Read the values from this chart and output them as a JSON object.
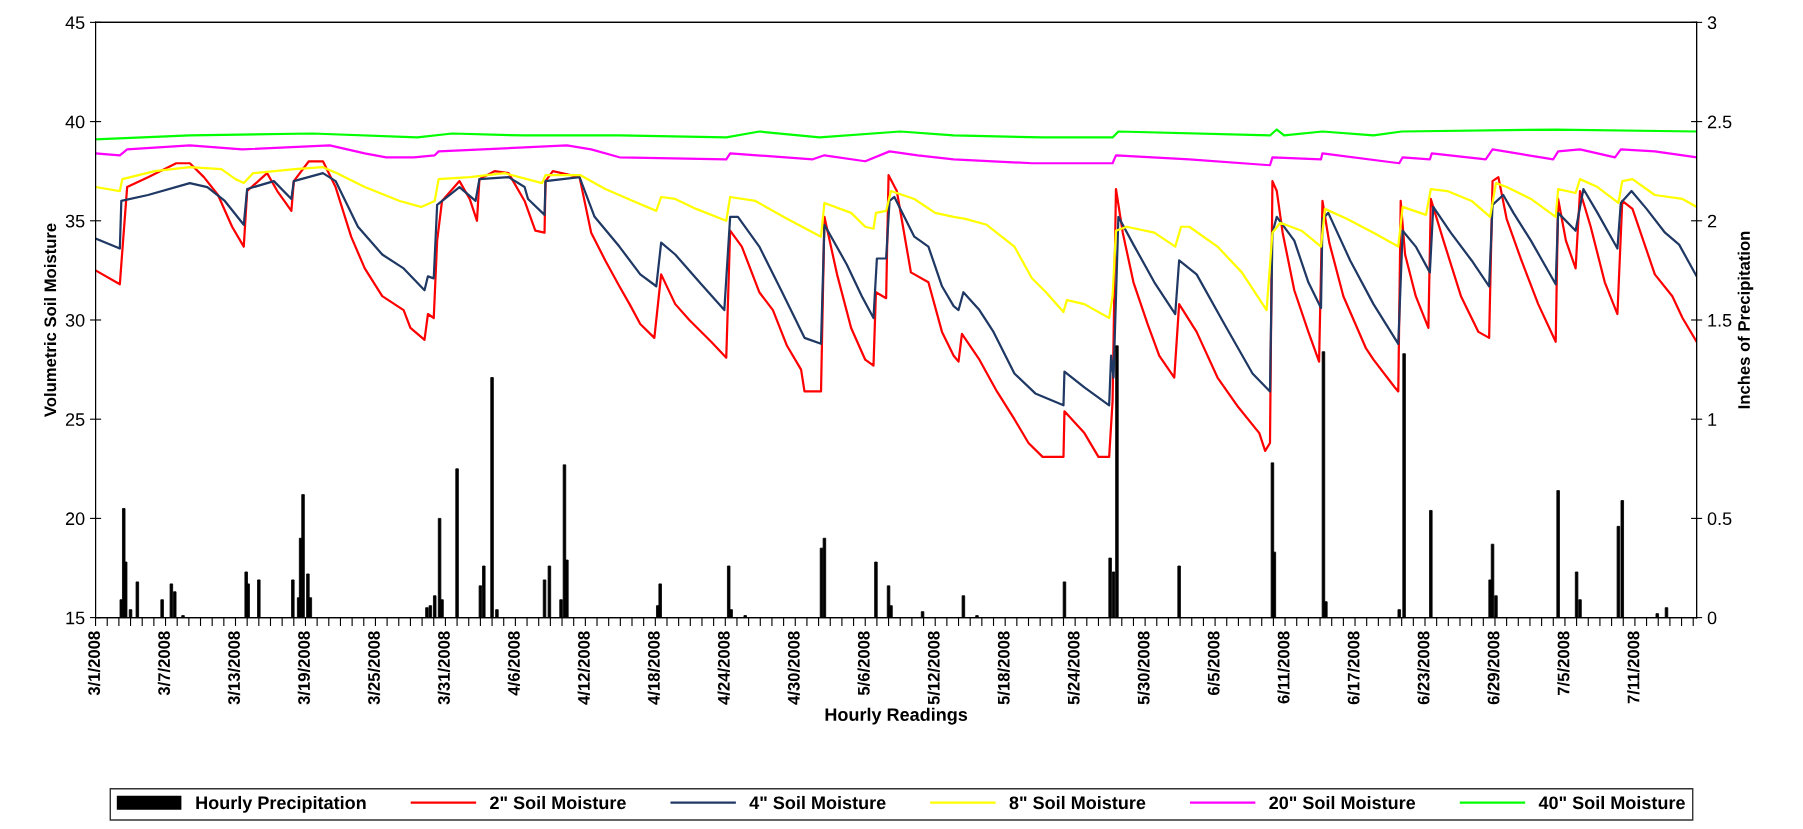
{
  "chart_data": {
    "type": "line",
    "xlabel": "Hourly Readings",
    "ylabel": "Volumetric Soil Moisture",
    "y2label": "Inches of Precipitation",
    "xlim": [
      "2008-03-01T00:00",
      "2008-07-16T07:00"
    ],
    "ylim": [
      15,
      45
    ],
    "yticks": [
      15,
      20,
      25,
      30,
      35,
      40,
      45
    ],
    "y2lim": [
      0,
      3
    ],
    "y2ticks": [
      0,
      0.5,
      1,
      1.5,
      2,
      2.5,
      3
    ],
    "xticks": [
      {
        "value": "2008-03-01",
        "label": "3/1/2008"
      },
      {
        "value": "2008-03-02",
        "label": null
      },
      {
        "value": "2008-03-03",
        "label": null
      },
      {
        "value": "2008-03-04",
        "label": null
      },
      {
        "value": "2008-03-05",
        "label": null
      },
      {
        "value": "2008-03-06",
        "label": null
      },
      {
        "value": "2008-03-07",
        "label": "3/7/2008"
      },
      {
        "value": "2008-03-08",
        "label": null
      },
      {
        "value": "2008-03-09",
        "label": null
      },
      {
        "value": "2008-03-10",
        "label": null
      },
      {
        "value": "2008-03-11",
        "label": null
      },
      {
        "value": "2008-03-12",
        "label": null
      },
      {
        "value": "2008-03-13",
        "label": "3/13/2008"
      },
      {
        "value": "2008-03-14",
        "label": null
      },
      {
        "value": "2008-03-15",
        "label": null
      },
      {
        "value": "2008-03-16",
        "label": null
      },
      {
        "value": "2008-03-17",
        "label": null
      },
      {
        "value": "2008-03-18",
        "label": null
      },
      {
        "value": "2008-03-19",
        "label": "3/19/2008"
      },
      {
        "value": "2008-03-20",
        "label": null
      },
      {
        "value": "2008-03-21",
        "label": null
      },
      {
        "value": "2008-03-22",
        "label": null
      },
      {
        "value": "2008-03-23",
        "label": null
      },
      {
        "value": "2008-03-24",
        "label": null
      },
      {
        "value": "2008-03-25",
        "label": "3/25/2008"
      },
      {
        "value": "2008-03-26",
        "label": null
      },
      {
        "value": "2008-03-27",
        "label": null
      },
      {
        "value": "2008-03-28",
        "label": null
      },
      {
        "value": "2008-03-29",
        "label": null
      },
      {
        "value": "2008-03-30",
        "label": null
      },
      {
        "value": "2008-03-31",
        "label": "3/31/2008"
      },
      {
        "value": "2008-04-01",
        "label": null
      },
      {
        "value": "2008-04-02",
        "label": null
      },
      {
        "value": "2008-04-03",
        "label": null
      },
      {
        "value": "2008-04-04",
        "label": null
      },
      {
        "value": "2008-04-05",
        "label": null
      },
      {
        "value": "2008-04-06",
        "label": "4/6/2008"
      },
      {
        "value": "2008-04-07",
        "label": null
      },
      {
        "value": "2008-04-08",
        "label": null
      },
      {
        "value": "2008-04-09",
        "label": null
      },
      {
        "value": "2008-04-10",
        "label": null
      },
      {
        "value": "2008-04-11",
        "label": null
      },
      {
        "value": "2008-04-12",
        "label": "4/12/2008"
      },
      {
        "value": "2008-04-13",
        "label": null
      },
      {
        "value": "2008-04-14",
        "label": null
      },
      {
        "value": "2008-04-15",
        "label": null
      },
      {
        "value": "2008-04-16",
        "label": null
      },
      {
        "value": "2008-04-17",
        "label": null
      },
      {
        "value": "2008-04-18",
        "label": "4/18/2008"
      },
      {
        "value": "2008-04-19",
        "label": null
      },
      {
        "value": "2008-04-20",
        "label": null
      },
      {
        "value": "2008-04-21",
        "label": null
      },
      {
        "value": "2008-04-22",
        "label": null
      },
      {
        "value": "2008-04-23",
        "label": null
      },
      {
        "value": "2008-04-24",
        "label": "4/24/2008"
      },
      {
        "value": "2008-04-25",
        "label": null
      },
      {
        "value": "2008-04-26",
        "label": null
      },
      {
        "value": "2008-04-27",
        "label": null
      },
      {
        "value": "2008-04-28",
        "label": null
      },
      {
        "value": "2008-04-29",
        "label": null
      },
      {
        "value": "2008-04-30",
        "label": "4/30/2008"
      },
      {
        "value": "2008-05-01",
        "label": null
      },
      {
        "value": "2008-05-02",
        "label": null
      },
      {
        "value": "2008-05-03",
        "label": null
      },
      {
        "value": "2008-05-04",
        "label": null
      },
      {
        "value": "2008-05-05",
        "label": null
      },
      {
        "value": "2008-05-06",
        "label": "5/6/2008"
      },
      {
        "value": "2008-05-07",
        "label": null
      },
      {
        "value": "2008-05-08",
        "label": null
      },
      {
        "value": "2008-05-09",
        "label": null
      },
      {
        "value": "2008-05-10",
        "label": null
      },
      {
        "value": "2008-05-11",
        "label": null
      },
      {
        "value": "2008-05-12",
        "label": "5/12/2008"
      },
      {
        "value": "2008-05-13",
        "label": null
      },
      {
        "value": "2008-05-14",
        "label": null
      },
      {
        "value": "2008-05-15",
        "label": null
      },
      {
        "value": "2008-05-16",
        "label": null
      },
      {
        "value": "2008-05-17",
        "label": null
      },
      {
        "value": "2008-05-18",
        "label": "5/18/2008"
      },
      {
        "value": "2008-05-19",
        "label": null
      },
      {
        "value": "2008-05-20",
        "label": null
      },
      {
        "value": "2008-05-21",
        "label": null
      },
      {
        "value": "2008-05-22",
        "label": null
      },
      {
        "value": "2008-05-23",
        "label": null
      },
      {
        "value": "2008-05-24",
        "label": "5/24/2008"
      },
      {
        "value": "2008-05-25",
        "label": null
      },
      {
        "value": "2008-05-26",
        "label": null
      },
      {
        "value": "2008-05-27",
        "label": null
      },
      {
        "value": "2008-05-28",
        "label": null
      },
      {
        "value": "2008-05-29",
        "label": null
      },
      {
        "value": "2008-05-30",
        "label": "5/30/2008"
      },
      {
        "value": "2008-05-31",
        "label": null
      },
      {
        "value": "2008-06-01",
        "label": null
      },
      {
        "value": "2008-06-02",
        "label": null
      },
      {
        "value": "2008-06-03",
        "label": null
      },
      {
        "value": "2008-06-04",
        "label": null
      },
      {
        "value": "2008-06-05",
        "label": "6/5/2008"
      },
      {
        "value": "2008-06-06",
        "label": null
      },
      {
        "value": "2008-06-07",
        "label": null
      },
      {
        "value": "2008-06-08",
        "label": null
      },
      {
        "value": "2008-06-09",
        "label": null
      },
      {
        "value": "2008-06-10",
        "label": null
      },
      {
        "value": "2008-06-11",
        "label": "6/11/2008"
      },
      {
        "value": "2008-06-12",
        "label": null
      },
      {
        "value": "2008-06-13",
        "label": null
      },
      {
        "value": "2008-06-14",
        "label": null
      },
      {
        "value": "2008-06-15",
        "label": null
      },
      {
        "value": "2008-06-16",
        "label": null
      },
      {
        "value": "2008-06-17",
        "label": "6/17/2008"
      },
      {
        "value": "2008-06-18",
        "label": null
      },
      {
        "value": "2008-06-19",
        "label": null
      },
      {
        "value": "2008-06-20",
        "label": null
      },
      {
        "value": "2008-06-21",
        "label": null
      },
      {
        "value": "2008-06-22",
        "label": null
      },
      {
        "value": "2008-06-23",
        "label": "6/23/2008"
      },
      {
        "value": "2008-06-24",
        "label": null
      },
      {
        "value": "2008-06-25",
        "label": null
      },
      {
        "value": "2008-06-26",
        "label": null
      },
      {
        "value": "2008-06-27",
        "label": null
      },
      {
        "value": "2008-06-28",
        "label": null
      },
      {
        "value": "2008-06-29",
        "label": "6/29/2008"
      },
      {
        "value": "2008-06-30",
        "label": null
      },
      {
        "value": "2008-07-01",
        "label": null
      },
      {
        "value": "2008-07-02",
        "label": null
      },
      {
        "value": "2008-07-03",
        "label": null
      },
      {
        "value": "2008-07-04",
        "label": null
      },
      {
        "value": "2008-07-05",
        "label": "7/5/2008"
      },
      {
        "value": "2008-07-06",
        "label": null
      },
      {
        "value": "2008-07-07",
        "label": null
      },
      {
        "value": "2008-07-08",
        "label": null
      },
      {
        "value": "2008-07-09",
        "label": null
      },
      {
        "value": "2008-07-10",
        "label": null
      },
      {
        "value": "2008-07-11",
        "label": "7/11/2008"
      },
      {
        "value": "2008-07-12",
        "label": null
      },
      {
        "value": "2008-07-13",
        "label": null
      },
      {
        "value": "2008-07-14",
        "label": null
      },
      {
        "value": "2008-07-15",
        "label": null
      },
      {
        "value": "2008-07-16",
        "label": null
      }
    ],
    "legend": "bottom",
    "grid": false,
    "marker": "none",
    "line_style": "solid",
    "series": [
      {
        "name": "Hourly Precipitation",
        "type": "bar",
        "axis": "y2",
        "color": "#000000",
        "x": [
          "2008-03-03T05:00",
          "2008-03-03T10:00",
          "2008-03-03T14:00",
          "2008-03-04T00:00",
          "2008-03-04T14:00",
          "2008-03-06T17:00",
          "2008-03-07T12:00",
          "2008-03-07T19:00",
          "2008-03-08T12:00",
          "2008-03-13T22:00",
          "2008-03-14T02:00",
          "2008-03-15T00:00",
          "2008-03-17T22:00",
          "2008-03-18T10:00",
          "2008-03-18T14:00",
          "2008-03-18T19:00",
          "2008-03-19T05:00",
          "2008-03-19T10:00",
          "2008-03-29T10:00",
          "2008-03-29T17:00",
          "2008-03-30T02:00",
          "2008-03-30T12:00",
          "2008-03-30T17:00",
          "2008-04-01T00:00",
          "2008-04-03T00:00",
          "2008-04-03T07:00",
          "2008-04-04T00:00",
          "2008-04-04T10:00",
          "2008-04-08T12:00",
          "2008-04-08T22:00",
          "2008-04-09T22:00",
          "2008-04-10T05:00",
          "2008-04-10T10:00",
          "2008-04-18T05:00",
          "2008-04-18T10:00",
          "2008-04-24T07:00",
          "2008-04-24T12:00",
          "2008-04-25T17:00",
          "2008-05-02T06:00",
          "2008-05-02T12:00",
          "2008-05-06T22:00",
          "2008-05-08T00:00",
          "2008-05-08T05:00",
          "2008-05-10T22:00",
          "2008-05-14T10:00",
          "2008-05-15T14:00",
          "2008-05-23T02:00",
          "2008-05-27T00:00",
          "2008-05-27T07:00",
          "2008-05-27T14:00",
          "2008-06-01T22:00",
          "2008-06-09T22:00",
          "2008-06-10T02:00",
          "2008-06-14T07:00",
          "2008-06-14T12:00",
          "2008-06-20T19:00",
          "2008-06-21T05:00",
          "2008-06-23T12:00",
          "2008-06-28T14:00",
          "2008-06-28T19:00",
          "2008-06-29T02:00",
          "2008-07-04T10:00",
          "2008-07-06T00:00",
          "2008-07-06T07:00",
          "2008-07-09T14:00",
          "2008-07-09T22:00",
          "2008-07-12T22:00",
          "2008-07-13T17:00"
        ],
        "values": [
          0.09,
          0.55,
          0.28,
          0.04,
          0.18,
          0.09,
          0.17,
          0.13,
          0.01,
          0.23,
          0.17,
          0.19,
          0.19,
          0.1,
          0.4,
          0.62,
          0.22,
          0.1,
          0.05,
          0.06,
          0.11,
          0.5,
          0.09,
          0.75,
          0.16,
          0.26,
          1.21,
          0.04,
          0.19,
          0.26,
          0.09,
          0.77,
          0.29,
          0.06,
          0.17,
          0.26,
          0.04,
          0.01,
          0.35,
          0.4,
          0.28,
          0.16,
          0.06,
          0.03,
          0.11,
          0.01,
          0.18,
          0.3,
          0.23,
          1.37,
          0.26,
          0.78,
          0.33,
          1.34,
          0.08,
          0.04,
          1.33,
          0.54,
          0.19,
          0.37,
          0.11,
          0.64,
          0.23,
          0.09,
          0.46,
          0.59,
          0.02,
          0.05
        ]
      },
      {
        "name": "2\" Soil Moisture",
        "color": "#ff0000",
        "x": [
          "2008-03-01T00:00",
          "2008-03-03T02:00",
          "2008-03-03T05:00",
          "2008-03-03T17:00",
          "2008-03-05T12:00",
          "2008-03-07T22:00",
          "2008-03-09T02:00",
          "2008-03-10T07:00",
          "2008-03-11T12:00",
          "2008-03-12T17:00",
          "2008-03-13T17:00",
          "2008-03-14T00:00",
          "2008-03-15T17:00",
          "2008-03-16T14:00",
          "2008-03-17T19:00",
          "2008-03-18T00:00",
          "2008-03-19T07:00",
          "2008-03-20T12:00",
          "2008-03-21T14:00",
          "2008-03-22T22:00",
          "2008-03-24T02:00",
          "2008-03-25T14:00",
          "2008-03-27T10:00",
          "2008-03-28T00:00",
          "2008-03-29T05:00",
          "2008-03-29T12:00",
          "2008-03-30T00:00",
          "2008-03-30T07:00",
          "2008-03-30T17:00",
          "2008-04-01T05:00",
          "2008-04-02T02:00",
          "2008-04-02T17:00",
          "2008-04-02T22:00",
          "2008-04-04T05:00",
          "2008-04-05T10:00",
          "2008-04-06T19:00",
          "2008-04-07T17:00",
          "2008-04-08T12:00",
          "2008-04-08T14:00",
          "2008-04-09T05:00",
          "2008-04-11T12:00",
          "2008-04-12T12:00",
          "2008-04-13T17:00",
          "2008-04-14T22:00",
          "2008-04-15T19:00",
          "2008-04-16T17:00",
          "2008-04-17T22:00",
          "2008-04-18T12:00",
          "2008-04-19T17:00",
          "2008-04-20T22:00",
          "2008-04-22T19:00",
          "2008-04-24T02:00",
          "2008-04-24T10:00",
          "2008-04-25T10:00",
          "2008-04-26T22:00",
          "2008-04-28T02:00",
          "2008-04-29T07:00",
          "2008-04-30T12:00",
          "2008-04-30T19:00",
          "2008-05-02T05:00",
          "2008-05-02T12:00",
          "2008-05-03T14:00",
          "2008-05-04T19:00",
          "2008-05-06T00:00",
          "2008-05-06T17:00",
          "2008-05-06T22:00",
          "2008-05-07T19:00",
          "2008-05-08T00:00",
          "2008-05-08T17:00",
          "2008-05-09T22:00",
          "2008-05-11T10:00",
          "2008-05-12T14:00",
          "2008-05-13T14:00",
          "2008-05-14T00:00",
          "2008-05-14T07:00",
          "2008-05-15T19:00",
          "2008-05-17T07:00",
          "2008-05-18T19:00",
          "2008-05-20T00:00",
          "2008-05-21T05:00",
          "2008-05-23T00:00",
          "2008-05-23T02:00",
          "2008-05-24T19:00",
          "2008-05-26T00:00",
          "2008-05-26T22:00",
          "2008-05-27T05:00",
          "2008-05-27T12:00",
          "2008-05-28T02:00",
          "2008-05-29T00:00",
          "2008-05-30T05:00",
          "2008-05-31T05:00",
          "2008-06-01T12:00",
          "2008-06-01T22:00",
          "2008-06-03T10:00",
          "2008-06-05T05:00",
          "2008-06-07T00:00",
          "2008-06-08T19:00",
          "2008-06-09T07:00",
          "2008-06-09T17:00",
          "2008-06-09T22:00",
          "2008-06-10T07:00",
          "2008-06-10T19:00",
          "2008-06-11T19:00",
          "2008-06-13T00:00",
          "2008-06-13T22:00",
          "2008-06-14T05:00",
          "2008-06-14T19:00",
          "2008-06-16T00:00",
          "2008-06-17T22:00",
          "2008-06-18T14:00",
          "2008-06-20T10:00",
          "2008-06-20T17:00",
          "2008-06-20T22:00",
          "2008-06-21T07:00",
          "2008-06-22T05:00",
          "2008-06-23T07:00",
          "2008-06-23T12:00",
          "2008-06-24T14:00",
          "2008-06-26T02:00",
          "2008-06-27T14:00",
          "2008-06-28T12:00",
          "2008-06-28T19:00",
          "2008-06-29T07:00",
          "2008-06-30T00:00",
          "2008-07-01T05:00",
          "2008-07-02T17:00",
          "2008-07-04T05:00",
          "2008-07-04T10:00",
          "2008-07-05T02:00",
          "2008-07-05T22:00",
          "2008-07-06T07:00",
          "2008-07-07T05:00",
          "2008-07-08T10:00",
          "2008-07-09T12:00",
          "2008-07-09T22:00",
          "2008-07-10T19:00",
          "2008-07-12T17:00",
          "2008-07-14T05:00",
          "2008-07-15T02:00",
          "2008-07-16T07:00"
        ],
        "values": [
          32.5,
          31.8,
          32.8,
          36.7,
          37.2,
          37.9,
          37.9,
          37.2,
          36.3,
          34.7,
          33.7,
          36.5,
          37.4,
          36.5,
          35.5,
          37.0,
          38.0,
          38.0,
          36.7,
          34.2,
          32.6,
          31.2,
          30.5,
          29.6,
          29.0,
          30.3,
          30.1,
          34.0,
          36.0,
          37.0,
          36.1,
          35.0,
          37.1,
          37.5,
          37.4,
          36.0,
          34.5,
          34.4,
          37.0,
          37.5,
          37.2,
          34.4,
          33.0,
          31.7,
          30.8,
          29.8,
          29.1,
          32.3,
          30.8,
          30.0,
          28.9,
          28.1,
          34.5,
          33.7,
          31.4,
          30.5,
          28.7,
          27.5,
          26.4,
          26.4,
          35.2,
          32.3,
          29.6,
          28.0,
          27.7,
          31.4,
          31.1,
          37.3,
          36.5,
          32.4,
          31.9,
          29.4,
          28.2,
          27.9,
          29.3,
          28.0,
          26.4,
          25.0,
          23.8,
          23.1,
          23.1,
          25.4,
          24.3,
          23.1,
          23.1,
          25.9,
          36.6,
          34.4,
          31.9,
          29.8,
          28.2,
          27.1,
          30.8,
          29.4,
          27.1,
          25.6,
          24.3,
          23.4,
          23.8,
          37.0,
          36.5,
          34.4,
          31.5,
          29.4,
          27.9,
          36.0,
          33.9,
          31.2,
          28.6,
          28.0,
          26.6,
          26.4,
          36.0,
          33.3,
          31.2,
          29.6,
          36.1,
          34.0,
          31.2,
          29.4,
          29.1,
          37.0,
          37.2,
          35.1,
          33.1,
          30.8,
          28.9,
          36.1,
          34.0,
          32.6,
          36.5,
          34.7,
          31.9,
          30.3,
          36.0,
          35.6,
          32.3,
          31.2,
          30.1,
          28.9
        ]
      },
      {
        "name": "4\" Soil Moisture",
        "color": "#1f3864",
        "x": [
          "2008-03-01T00:00",
          "2008-03-03T02:00",
          "2008-03-03T05:00",
          "2008-03-05T12:00",
          "2008-03-09T02:00",
          "2008-03-10T14:00",
          "2008-03-12T02:00",
          "2008-03-13T17:00",
          "2008-03-14T00:00",
          "2008-03-16T07:00",
          "2008-03-17T19:00",
          "2008-03-18T00:00",
          "2008-03-20T12:00",
          "2008-03-21T14:00",
          "2008-03-23T12:00",
          "2008-03-25T14:00",
          "2008-03-27T10:00",
          "2008-03-29T05:00",
          "2008-03-29T12:00",
          "2008-03-30T00:00",
          "2008-03-30T07:00",
          "2008-04-01T05:00",
          "2008-04-02T14:00",
          "2008-04-02T22:00",
          "2008-04-05T10:00",
          "2008-04-06T19:00",
          "2008-04-07T02:00",
          "2008-04-08T12:00",
          "2008-04-08T14:00",
          "2008-04-11T12:00",
          "2008-04-12T19:00",
          "2008-04-14T22:00",
          "2008-04-16T17:00",
          "2008-04-18T02:00",
          "2008-04-18T12:00",
          "2008-04-19T17:00",
          "2008-04-21T19:00",
          "2008-04-23T22:00",
          "2008-04-24T10:00",
          "2008-04-25T02:00",
          "2008-04-26T22:00",
          "2008-04-28T19:00",
          "2008-04-30T19:00",
          "2008-05-02T05:00",
          "2008-05-02T12:00",
          "2008-05-04T10:00",
          "2008-05-05T17:00",
          "2008-05-06T17:00",
          "2008-05-07T00:00",
          "2008-05-07T19:00",
          "2008-05-08T02:00",
          "2008-05-08T12:00",
          "2008-05-10T05:00",
          "2008-05-11T10:00",
          "2008-05-12T14:00",
          "2008-05-13T14:00",
          "2008-05-14T00:00",
          "2008-05-14T10:00",
          "2008-05-15T19:00",
          "2008-05-17T00:00",
          "2008-05-18T19:00",
          "2008-05-20T14:00",
          "2008-05-23T00:00",
          "2008-05-23T02:00",
          "2008-05-24T19:00",
          "2008-05-26T22:00",
          "2008-05-27T02:00",
          "2008-05-27T07:00",
          "2008-05-27T17:00",
          "2008-05-29T00:00",
          "2008-05-30T19:00",
          "2008-06-01T14:00",
          "2008-06-01T22:00",
          "2008-06-03T10:00",
          "2008-06-05T19:00",
          "2008-06-08T05:00",
          "2008-06-09T17:00",
          "2008-06-09T22:00",
          "2008-06-10T07:00",
          "2008-06-11T19:00",
          "2008-06-13T00:00",
          "2008-06-14T02:00",
          "2008-06-14T05:00",
          "2008-06-14T17:00",
          "2008-06-16T14:00",
          "2008-06-18T14:00",
          "2008-06-20T17:00",
          "2008-06-21T02:00",
          "2008-06-22T05:00",
          "2008-06-23T10:00",
          "2008-06-23T17:00",
          "2008-06-25T05:00",
          "2008-06-27T00:00",
          "2008-06-28T12:00",
          "2008-06-28T19:00",
          "2008-06-29T17:00",
          "2008-06-30T14:00",
          "2008-07-02T02:00",
          "2008-07-04T05:00",
          "2008-07-04T10:00",
          "2008-07-05T22:00",
          "2008-07-06T14:00",
          "2008-07-07T19:00",
          "2008-07-09T12:00",
          "2008-07-09T19:00",
          "2008-07-10T17:00",
          "2008-07-12T00:00",
          "2008-07-13T14:00",
          "2008-07-14T19:00",
          "2008-07-16T07:00"
        ],
        "values": [
          34.1,
          33.6,
          36.0,
          36.3,
          36.9,
          36.7,
          36.0,
          34.8,
          36.6,
          37.0,
          36.1,
          37.0,
          37.4,
          37.0,
          34.7,
          33.3,
          32.6,
          31.5,
          32.2,
          32.1,
          35.8,
          36.7,
          36.0,
          37.1,
          37.2,
          36.7,
          36.1,
          35.3,
          37.0,
          37.2,
          35.2,
          33.7,
          32.3,
          31.7,
          33.9,
          33.3,
          31.9,
          30.5,
          35.2,
          35.2,
          33.7,
          31.5,
          29.1,
          28.8,
          34.8,
          32.8,
          31.2,
          30.1,
          33.1,
          33.1,
          36.0,
          36.2,
          34.2,
          33.7,
          31.7,
          30.7,
          30.5,
          31.4,
          30.5,
          29.4,
          27.3,
          26.3,
          25.7,
          27.4,
          26.6,
          25.7,
          28.2,
          27.1,
          35.2,
          33.8,
          31.9,
          30.3,
          33.0,
          32.3,
          29.8,
          27.3,
          26.4,
          34.4,
          35.2,
          34.0,
          31.9,
          30.6,
          35.1,
          35.4,
          33.0,
          30.8,
          28.8,
          34.5,
          33.7,
          32.4,
          35.7,
          34.4,
          33.0,
          31.7,
          35.8,
          36.3,
          35.4,
          34.0,
          31.8,
          35.4,
          34.5,
          36.6,
          35.4,
          33.6,
          35.9,
          36.5,
          35.6,
          34.4,
          33.8,
          32.2
        ]
      },
      {
        "name": "8\" Soil Moisture",
        "color": "#ffff00",
        "x": [
          "2008-03-01T00:00",
          "2008-03-03T02:00",
          "2008-03-03T07:00",
          "2008-03-06T02:00",
          "2008-03-09T02:00",
          "2008-03-11T19:00",
          "2008-03-13T00:00",
          "2008-03-13T17:00",
          "2008-03-14T12:00",
          "2008-03-18T02:00",
          "2008-03-20T12:00",
          "2008-03-21T17:00",
          "2008-03-24T02:00",
          "2008-03-27T02:00",
          "2008-03-28T22:00",
          "2008-03-30T02:00",
          "2008-03-30T10:00",
          "2008-04-02T02:00",
          "2008-04-05T02:00",
          "2008-04-08T07:00",
          "2008-04-08T14:00",
          "2008-04-11T14:00",
          "2008-04-13T17:00",
          "2008-04-16T02:00",
          "2008-04-18T02:00",
          "2008-04-18T12:00",
          "2008-04-19T17:00",
          "2008-04-21T12:00",
          "2008-04-24T02:00",
          "2008-04-24T10:00",
          "2008-04-26T14:00",
          "2008-04-29T07:00",
          "2008-05-02T05:00",
          "2008-05-02T12:00",
          "2008-05-04T19:00",
          "2008-05-06T00:00",
          "2008-05-06T17:00",
          "2008-05-06T22:00",
          "2008-05-07T19:00",
          "2008-05-08T05:00",
          "2008-05-10T05:00",
          "2008-05-12T00:00",
          "2008-05-13T14:00",
          "2008-05-14T14:00",
          "2008-05-16T10:00",
          "2008-05-18T19:00",
          "2008-05-20T07:00",
          "2008-05-21T12:00",
          "2008-05-23T00:00",
          "2008-05-23T07:00",
          "2008-05-24T19:00",
          "2008-05-26T22:00",
          "2008-05-27T05:00",
          "2008-05-27T12:00",
          "2008-05-28T10:00",
          "2008-05-30T19:00",
          "2008-06-01T14:00",
          "2008-06-02T02:00",
          "2008-06-02T19:00",
          "2008-06-05T05:00",
          "2008-06-07T07:00",
          "2008-06-09T10:00",
          "2008-06-09T22:00",
          "2008-06-10T14:00",
          "2008-06-12T10:00",
          "2008-06-14T02:00",
          "2008-06-14T10:00",
          "2008-06-16T07:00",
          "2008-06-18T14:00",
          "2008-06-20T17:00",
          "2008-06-21T02:00",
          "2008-06-23T02:00",
          "2008-06-23T12:00",
          "2008-06-24T22:00",
          "2008-06-27T00:00",
          "2008-06-28T14:00",
          "2008-06-29T02:00",
          "2008-06-30T00:00",
          "2008-07-02T02:00",
          "2008-07-04T05:00",
          "2008-07-04T10:00",
          "2008-07-05T22:00",
          "2008-07-06T07:00",
          "2008-07-07T19:00",
          "2008-07-09T14:00",
          "2008-07-09T22:00",
          "2008-07-10T19:00",
          "2008-07-12T17:00",
          "2008-07-15T02:00",
          "2008-07-16T07:00"
        ],
        "values": [
          36.7,
          36.5,
          37.1,
          37.5,
          37.7,
          37.6,
          37.1,
          36.9,
          37.4,
          37.6,
          37.7,
          37.4,
          36.7,
          36.0,
          35.7,
          36.0,
          37.1,
          37.2,
          37.4,
          36.9,
          37.3,
          37.3,
          36.6,
          36.0,
          35.5,
          36.2,
          36.1,
          35.6,
          35.0,
          36.2,
          36.0,
          35.1,
          34.2,
          35.9,
          35.4,
          34.7,
          34.6,
          35.4,
          35.5,
          36.5,
          36.1,
          35.4,
          35.2,
          35.1,
          34.8,
          33.7,
          32.1,
          31.4,
          30.4,
          31.0,
          30.8,
          30.1,
          31.2,
          34.5,
          34.7,
          34.4,
          33.7,
          34.7,
          34.7,
          33.7,
          32.4,
          30.5,
          34.4,
          34.9,
          34.5,
          33.7,
          35.6,
          35.1,
          34.4,
          33.7,
          35.7,
          35.3,
          36.6,
          36.5,
          36.0,
          35.2,
          36.9,
          36.7,
          36.1,
          35.2,
          36.6,
          36.4,
          37.1,
          36.7,
          35.9,
          37.0,
          37.1,
          36.3,
          36.1,
          35.7
        ]
      },
      {
        "name": "20\" Soil Moisture",
        "color": "#ff00ff",
        "x": [
          "2008-03-01T00:00",
          "2008-03-03T02:00",
          "2008-03-03T17:00",
          "2008-03-09T02:00",
          "2008-03-13T14:00",
          "2008-03-21T02:00",
          "2008-03-24T02:00",
          "2008-03-25T22:00",
          "2008-03-28T07:00",
          "2008-03-30T02:00",
          "2008-03-30T10:00",
          "2008-04-06T19:00",
          "2008-04-10T10:00",
          "2008-04-12T12:00",
          "2008-04-14T22:00",
          "2008-04-24T02:00",
          "2008-04-24T10:00",
          "2008-05-01T12:00",
          "2008-05-02T12:00",
          "2008-05-06T00:00",
          "2008-05-08T02:00",
          "2008-05-10T12:00",
          "2008-05-13T14:00",
          "2008-05-20T07:00",
          "2008-05-27T05:00",
          "2008-05-27T12:00",
          "2008-06-02T19:00",
          "2008-06-09T17:00",
          "2008-06-09T22:00",
          "2008-06-14T02:00",
          "2008-06-14T05:00",
          "2008-06-20T19:00",
          "2008-06-21T02:00",
          "2008-06-23T10:00",
          "2008-06-23T14:00",
          "2008-06-28T05:00",
          "2008-06-28T19:00",
          "2008-07-04T00:00",
          "2008-07-04T10:00",
          "2008-07-06T07:00",
          "2008-07-09T07:00",
          "2008-07-09T19:00",
          "2008-07-12T17:00",
          "2008-07-16T07:00"
        ],
        "values": [
          38.4,
          38.3,
          38.6,
          38.8,
          38.6,
          38.8,
          38.4,
          38.2,
          38.2,
          38.3,
          38.5,
          38.7,
          38.8,
          38.6,
          38.2,
          38.1,
          38.4,
          38.1,
          38.3,
          38.0,
          38.5,
          38.3,
          38.1,
          37.9,
          37.9,
          38.3,
          38.1,
          37.8,
          38.2,
          38.1,
          38.4,
          37.9,
          38.2,
          38.1,
          38.4,
          38.1,
          38.6,
          38.1,
          38.5,
          38.6,
          38.2,
          38.6,
          38.5,
          38.2
        ]
      },
      {
        "name": "40\" Soil Moisture",
        "color": "#00ff00",
        "x": [
          "2008-03-01T00:00",
          "2008-03-09T02:00",
          "2008-03-19T14:00",
          "2008-03-28T14:00",
          "2008-03-31T14:00",
          "2008-04-06T19:00",
          "2008-04-14T22:00",
          "2008-04-24T02:00",
          "2008-04-26T22:00",
          "2008-05-02T02:00",
          "2008-05-09T00:00",
          "2008-05-13T14:00",
          "2008-05-21T05:00",
          "2008-05-27T05:00",
          "2008-05-27T17:00",
          "2008-06-09T17:00",
          "2008-06-10T07:00",
          "2008-06-10T22:00",
          "2008-06-14T05:00",
          "2008-06-18T14:00",
          "2008-06-21T00:00",
          "2008-07-04T05:00",
          "2008-07-16T07:00"
        ],
        "values": [
          39.1,
          39.3,
          39.4,
          39.2,
          39.4,
          39.3,
          39.3,
          39.2,
          39.5,
          39.2,
          39.5,
          39.3,
          39.2,
          39.2,
          39.5,
          39.3,
          39.6,
          39.3,
          39.5,
          39.3,
          39.5,
          39.6,
          39.5
        ]
      }
    ]
  }
}
